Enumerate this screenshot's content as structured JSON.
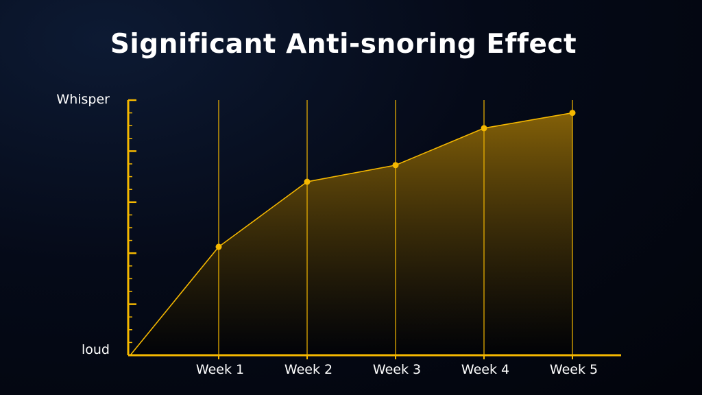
{
  "chart_data": {
    "type": "area",
    "title": "Significant Anti-snoring Effect",
    "xlabel": "",
    "ylabel": "",
    "categories": [
      "",
      "Week 1",
      "Week 2",
      "Week 3",
      "Week 4",
      "Week 5"
    ],
    "values": [
      0,
      42.5,
      68,
      74.5,
      89,
      95
    ],
    "ylim": [
      0,
      100
    ],
    "y_tick_labels": {
      "top": "Whisper",
      "bottom": "loud"
    },
    "grid": "vertical lines at each week",
    "colors": {
      "line": "#f5b800",
      "fill_top": "#7a5a0a",
      "fill_bottom": "#000000",
      "axis": "#f5b800"
    }
  }
}
